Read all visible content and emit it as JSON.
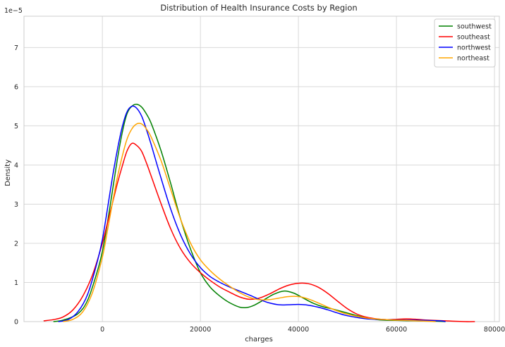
{
  "chart_data": {
    "type": "line",
    "title": "Distribution of Health Insurance Costs by Region",
    "xlabel": "charges",
    "ylabel": "Density",
    "y_multiplier_label": "1e−5",
    "xlim": [
      -16000,
      81000
    ],
    "ylim": [
      0,
      7.8
    ],
    "x_ticks": [
      0,
      20000,
      40000,
      60000,
      80000
    ],
    "x_tick_labels": [
      "0",
      "20000",
      "40000",
      "60000",
      "80000"
    ],
    "y_ticks": [
      0,
      1,
      2,
      3,
      4,
      5,
      6,
      7
    ],
    "y_tick_labels": [
      "0",
      "1",
      "2",
      "3",
      "4",
      "5",
      "6",
      "7"
    ],
    "grid": true,
    "legend_position": "top-right",
    "y_units_note": "density values in units of 1e-5",
    "series": [
      {
        "name": "southwest",
        "color": "#008000",
        "points": [
          [
            -10000,
            0
          ],
          [
            -8000,
            0.04
          ],
          [
            -5000,
            0.2
          ],
          [
            -3000,
            0.55
          ],
          [
            -1000,
            1.3
          ],
          [
            0,
            1.8
          ],
          [
            1000,
            2.5
          ],
          [
            2000,
            3.3
          ],
          [
            3000,
            4.1
          ],
          [
            4000,
            4.8
          ],
          [
            5000,
            5.3
          ],
          [
            6000,
            5.5
          ],
          [
            7000,
            5.55
          ],
          [
            8000,
            5.48
          ],
          [
            9000,
            5.3
          ],
          [
            10000,
            5.05
          ],
          [
            12000,
            4.35
          ],
          [
            14000,
            3.5
          ],
          [
            16000,
            2.6
          ],
          [
            18000,
            1.85
          ],
          [
            20000,
            1.25
          ],
          [
            22000,
            0.88
          ],
          [
            24000,
            0.65
          ],
          [
            26000,
            0.48
          ],
          [
            28000,
            0.37
          ],
          [
            29500,
            0.36
          ],
          [
            31000,
            0.42
          ],
          [
            33000,
            0.56
          ],
          [
            35000,
            0.7
          ],
          [
            37000,
            0.78
          ],
          [
            39000,
            0.73
          ],
          [
            41000,
            0.6
          ],
          [
            43000,
            0.47
          ],
          [
            45000,
            0.38
          ],
          [
            47000,
            0.32
          ],
          [
            50000,
            0.22
          ],
          [
            53000,
            0.12
          ],
          [
            56000,
            0.05
          ],
          [
            60000,
            0.03
          ],
          [
            64000,
            0.02
          ],
          [
            68000,
            0.01
          ],
          [
            70000,
            0
          ]
        ]
      },
      {
        "name": "southeast",
        "color": "#ff0000",
        "points": [
          [
            -12000,
            0.02
          ],
          [
            -10000,
            0.05
          ],
          [
            -8000,
            0.12
          ],
          [
            -6000,
            0.3
          ],
          [
            -4000,
            0.65
          ],
          [
            -2000,
            1.2
          ],
          [
            0,
            2.0
          ],
          [
            1000,
            2.5
          ],
          [
            2000,
            3.0
          ],
          [
            3000,
            3.5
          ],
          [
            4000,
            3.95
          ],
          [
            5000,
            4.35
          ],
          [
            6000,
            4.55
          ],
          [
            7000,
            4.5
          ],
          [
            8000,
            4.35
          ],
          [
            9000,
            4.05
          ],
          [
            10000,
            3.7
          ],
          [
            12000,
            3.0
          ],
          [
            14000,
            2.35
          ],
          [
            16000,
            1.85
          ],
          [
            18000,
            1.5
          ],
          [
            20000,
            1.25
          ],
          [
            22000,
            1.05
          ],
          [
            24000,
            0.88
          ],
          [
            26000,
            0.75
          ],
          [
            28000,
            0.63
          ],
          [
            30000,
            0.57
          ],
          [
            32000,
            0.6
          ],
          [
            34000,
            0.7
          ],
          [
            36000,
            0.83
          ],
          [
            38000,
            0.93
          ],
          [
            40000,
            0.98
          ],
          [
            42000,
            0.97
          ],
          [
            44000,
            0.88
          ],
          [
            46000,
            0.72
          ],
          [
            48000,
            0.52
          ],
          [
            50000,
            0.33
          ],
          [
            52000,
            0.19
          ],
          [
            54000,
            0.11
          ],
          [
            56000,
            0.07
          ],
          [
            58000,
            0.05
          ],
          [
            60000,
            0.06
          ],
          [
            62000,
            0.07
          ],
          [
            64000,
            0.06
          ],
          [
            66000,
            0.04
          ],
          [
            70000,
            0.02
          ],
          [
            74000,
            0
          ],
          [
            76000,
            0
          ]
        ]
      },
      {
        "name": "northwest",
        "color": "#0000ff",
        "points": [
          [
            -9000,
            0
          ],
          [
            -7000,
            0.05
          ],
          [
            -5000,
            0.25
          ],
          [
            -3000,
            0.7
          ],
          [
            -1000,
            1.55
          ],
          [
            0,
            2.1
          ],
          [
            1000,
            2.85
          ],
          [
            2000,
            3.65
          ],
          [
            3000,
            4.35
          ],
          [
            4000,
            4.95
          ],
          [
            5000,
            5.35
          ],
          [
            6000,
            5.5
          ],
          [
            7000,
            5.45
          ],
          [
            8000,
            5.25
          ],
          [
            9000,
            4.9
          ],
          [
            10000,
            4.5
          ],
          [
            12000,
            3.65
          ],
          [
            14000,
            2.85
          ],
          [
            16000,
            2.2
          ],
          [
            18000,
            1.72
          ],
          [
            20000,
            1.38
          ],
          [
            22000,
            1.15
          ],
          [
            24000,
            1.0
          ],
          [
            26000,
            0.88
          ],
          [
            28000,
            0.78
          ],
          [
            30000,
            0.68
          ],
          [
            32000,
            0.57
          ],
          [
            34000,
            0.48
          ],
          [
            36000,
            0.43
          ],
          [
            38000,
            0.43
          ],
          [
            40000,
            0.44
          ],
          [
            42000,
            0.42
          ],
          [
            44000,
            0.37
          ],
          [
            46000,
            0.3
          ],
          [
            48000,
            0.22
          ],
          [
            50000,
            0.15
          ],
          [
            54000,
            0.07
          ],
          [
            58000,
            0.05
          ],
          [
            62000,
            0.04
          ],
          [
            66000,
            0.03
          ],
          [
            69000,
            0.02
          ],
          [
            70000,
            0
          ]
        ]
      },
      {
        "name": "northeast",
        "color": "#ffa500",
        "points": [
          [
            -8000,
            0
          ],
          [
            -6000,
            0.06
          ],
          [
            -4000,
            0.25
          ],
          [
            -2000,
            0.75
          ],
          [
            0,
            1.65
          ],
          [
            1000,
            2.3
          ],
          [
            2000,
            3.0
          ],
          [
            3000,
            3.65
          ],
          [
            4000,
            4.2
          ],
          [
            5000,
            4.65
          ],
          [
            6000,
            4.92
          ],
          [
            7000,
            5.05
          ],
          [
            8000,
            5.05
          ],
          [
            9000,
            4.92
          ],
          [
            10000,
            4.7
          ],
          [
            12000,
            4.1
          ],
          [
            14000,
            3.35
          ],
          [
            16000,
            2.6
          ],
          [
            18000,
            2.0
          ],
          [
            20000,
            1.58
          ],
          [
            22000,
            1.3
          ],
          [
            24000,
            1.08
          ],
          [
            26000,
            0.9
          ],
          [
            28000,
            0.74
          ],
          [
            30000,
            0.62
          ],
          [
            32000,
            0.56
          ],
          [
            34000,
            0.56
          ],
          [
            36000,
            0.6
          ],
          [
            38000,
            0.64
          ],
          [
            40000,
            0.64
          ],
          [
            42000,
            0.58
          ],
          [
            44000,
            0.48
          ],
          [
            46000,
            0.37
          ],
          [
            48000,
            0.27
          ],
          [
            50000,
            0.19
          ],
          [
            54000,
            0.09
          ],
          [
            58000,
            0.05
          ],
          [
            62000,
            0.03
          ],
          [
            66000,
            0.01
          ],
          [
            68000,
            0
          ]
        ]
      }
    ]
  }
}
